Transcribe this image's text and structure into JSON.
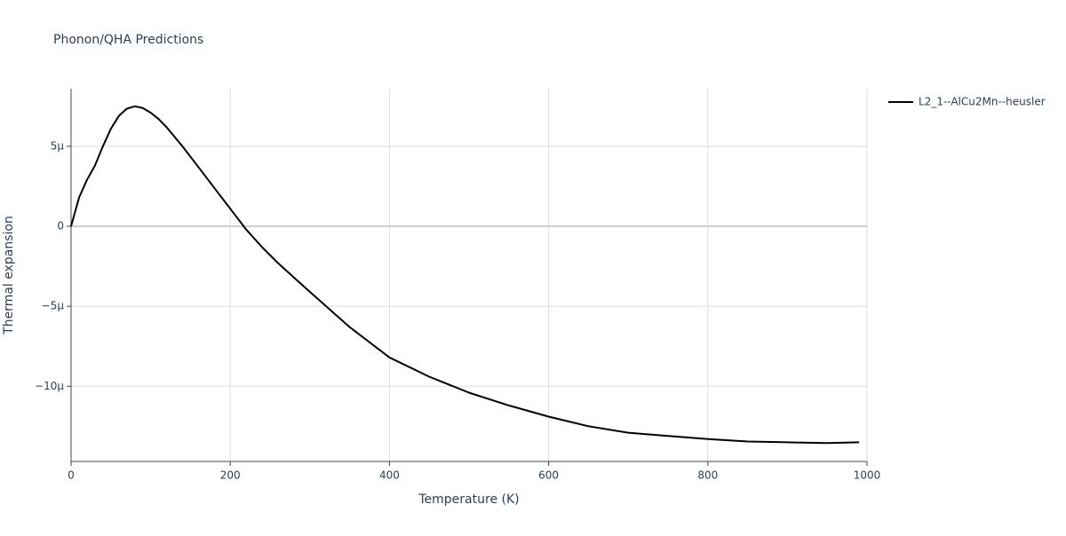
{
  "chart_data": {
    "type": "line",
    "title": "Phonon/QHA Predictions",
    "x_label": "Temperature (K)",
    "y_label": "Thermal expansion",
    "x": [
      0,
      10,
      20,
      30,
      40,
      50,
      60,
      70,
      80,
      90,
      100,
      110,
      120,
      140,
      160,
      180,
      200,
      220,
      240,
      260,
      280,
      300,
      350,
      400,
      450,
      500,
      550,
      600,
      650,
      700,
      750,
      800,
      850,
      900,
      950,
      990
    ],
    "series": [
      {
        "name": "L2_1--AlCu2Mn--heusler",
        "color": "#000000",
        "values": [
          0,
          1.8e-06,
          2.9e-06,
          3.8e-06,
          5e-06,
          6.1e-06,
          6.9e-06,
          7.35e-06,
          7.5e-06,
          7.4e-06,
          7.1e-06,
          6.7e-06,
          6.2e-06,
          5e-06,
          3.7e-06,
          2.4e-06,
          1.1e-06,
          -2e-07,
          -1.3e-06,
          -2.3e-06,
          -3.2e-06,
          -4.1e-06,
          -6.3e-06,
          -8.2e-06,
          -9.4e-06,
          -1.04e-05,
          -1.12e-05,
          -1.19e-05,
          -1.25e-05,
          -1.29e-05,
          -1.31e-05,
          -1.33e-05,
          -1.345e-05,
          -1.35e-05,
          -1.355e-05,
          -1.35e-05
        ]
      }
    ],
    "xlim": [
      0,
      1000
    ],
    "xticks": [
      0,
      200,
      400,
      600,
      800,
      1000
    ],
    "ylim": [
      -1.47e-05,
      8.6e-06
    ],
    "yticks": [
      {
        "value": -1e-05,
        "label": "−10μ"
      },
      {
        "value": -5e-06,
        "label": "−5μ"
      },
      0,
      {
        "value": 5e-06,
        "label": "5μ"
      }
    ],
    "grid": true,
    "legend": "top-right"
  }
}
